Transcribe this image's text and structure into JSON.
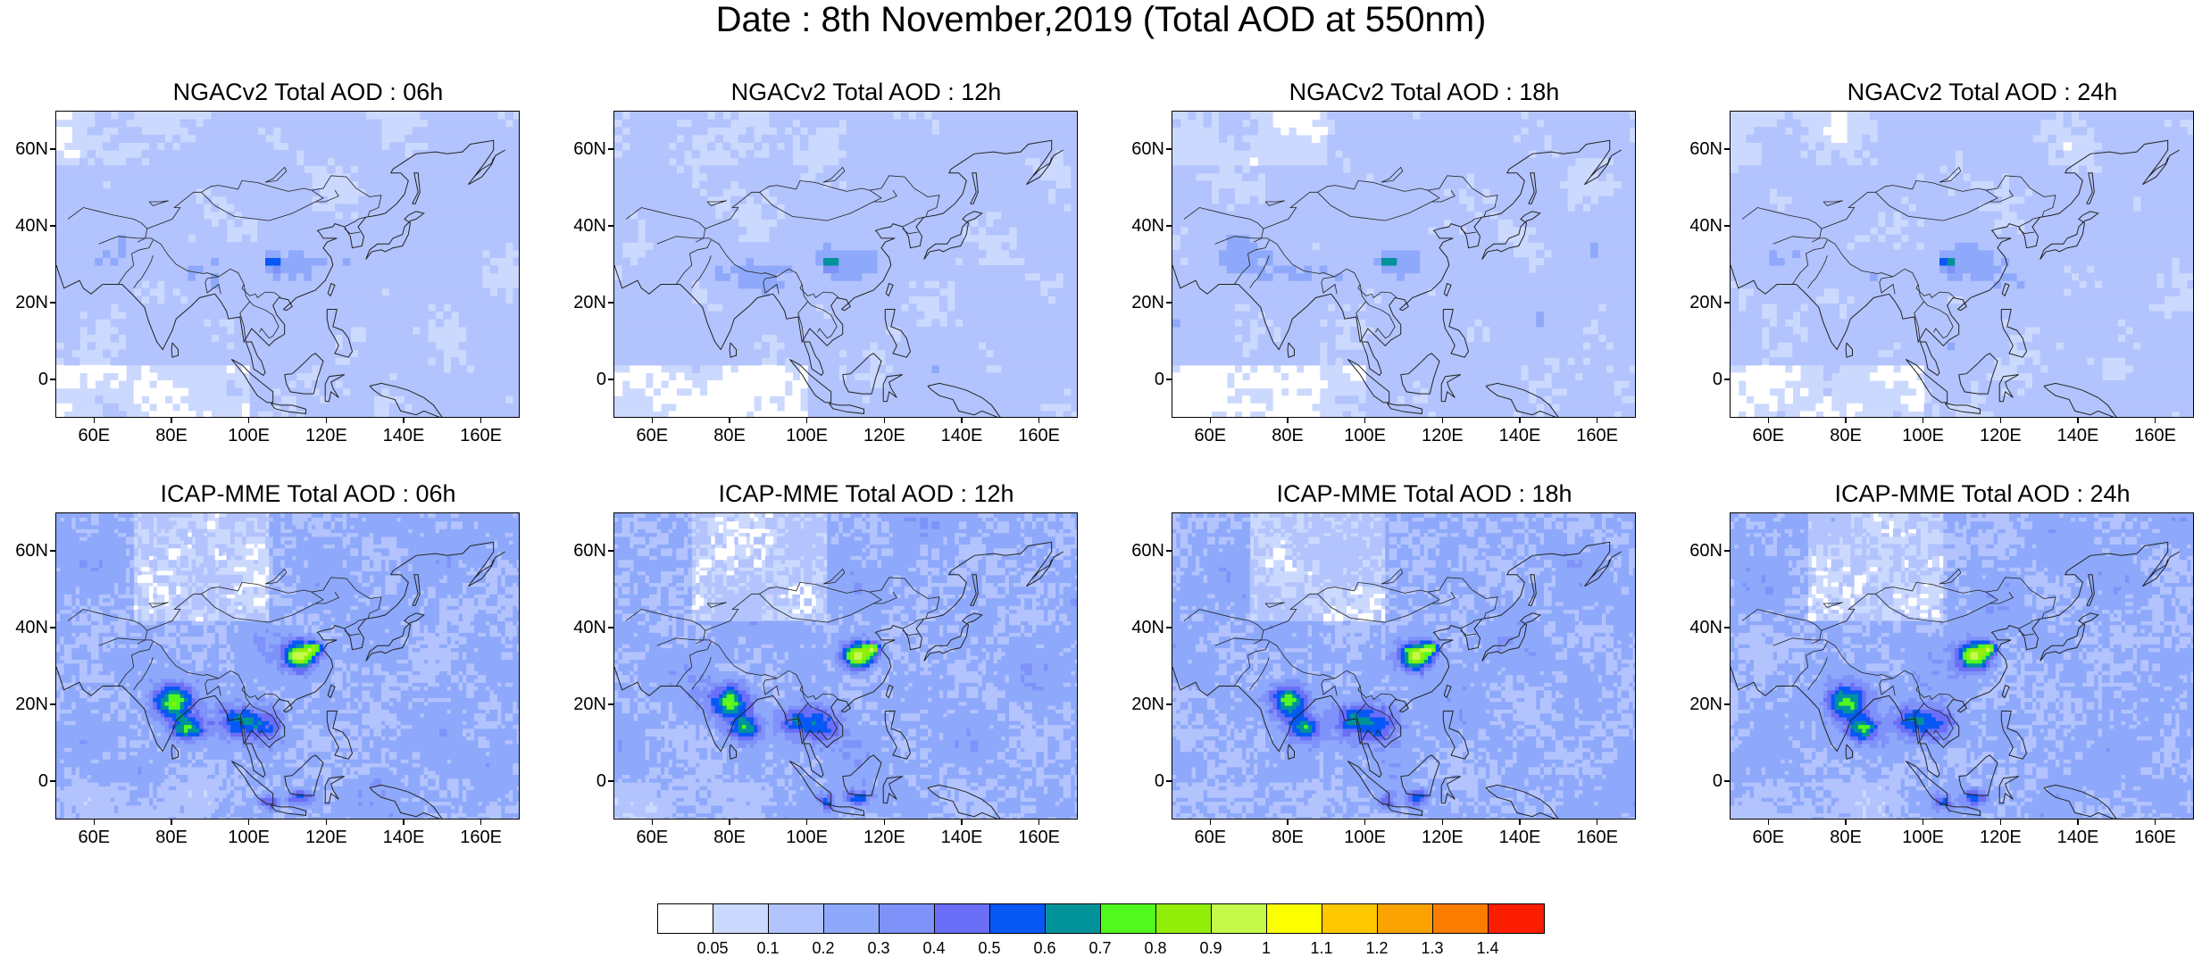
{
  "title": "Date : 8th November,2019 (Total AOD at 550nm)",
  "axis": {
    "lat_ticks": [
      {
        "value": 60,
        "label": "60N"
      },
      {
        "value": 40,
        "label": "40N"
      },
      {
        "value": 20,
        "label": "20N"
      },
      {
        "value": 0,
        "label": "0"
      }
    ],
    "lon_ticks": [
      {
        "value": 60,
        "label": "60E"
      },
      {
        "value": 80,
        "label": "80E"
      },
      {
        "value": 100,
        "label": "100E"
      },
      {
        "value": 120,
        "label": "120E"
      },
      {
        "value": 140,
        "label": "140E"
      },
      {
        "value": 160,
        "label": "160E"
      }
    ],
    "lon_range": [
      50,
      170
    ],
    "lat_range": [
      -10,
      70
    ]
  },
  "colorbar": {
    "colors": [
      "#ffffff",
      "#ccd9fe",
      "#b3c3fd",
      "#8ea9fb",
      "#7f92fa",
      "#6b6ef6",
      "#0758f5",
      "#01929a",
      "#52f91e",
      "#92ee08",
      "#c5fa4b",
      "#fcff00",
      "#fdc800",
      "#fba300",
      "#fa7d00",
      "#fb1d00"
    ],
    "labels": [
      "0.05",
      "0.1",
      "0.2",
      "0.3",
      "0.4",
      "0.5",
      "0.6",
      "0.7",
      "0.8",
      "0.9",
      "1",
      "1.1",
      "1.2",
      "1.3",
      "1.4"
    ]
  },
  "panels": [
    {
      "title": "NGACv2 Total AOD : 06h"
    },
    {
      "title": "NGACv2 Total AOD : 12h"
    },
    {
      "title": "NGACv2 Total AOD : 18h"
    },
    {
      "title": "NGACv2 Total AOD : 24h"
    },
    {
      "title": "ICAP-MME Total AOD : 06h"
    },
    {
      "title": "ICAP-MME Total AOD : 12h"
    },
    {
      "title": "ICAP-MME Total AOD : 18h"
    },
    {
      "title": "ICAP-MME Total AOD : 24h"
    }
  ]
}
